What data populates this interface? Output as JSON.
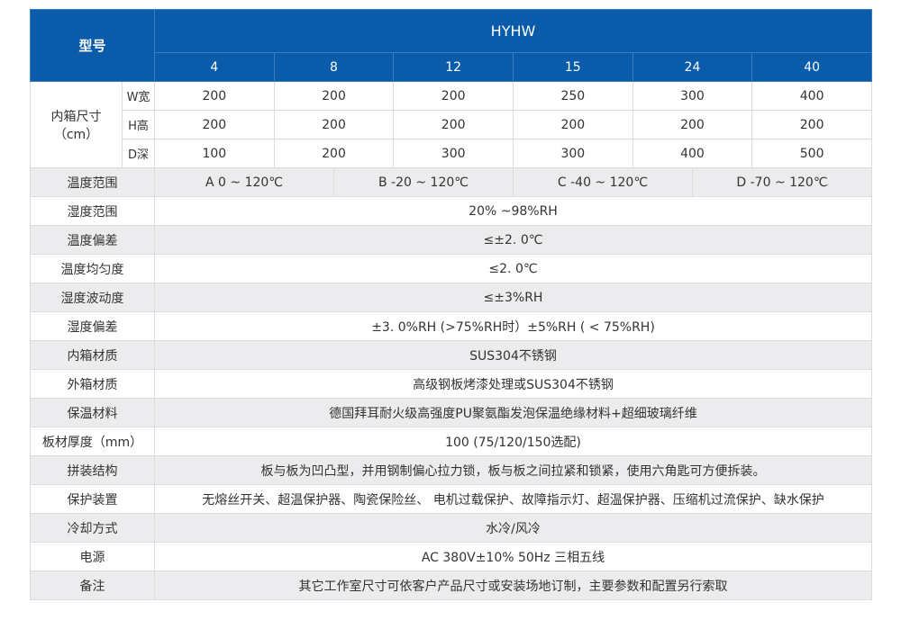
{
  "header": {
    "model_label": "型号",
    "series": "HYHW",
    "models": [
      "4",
      "8",
      "12",
      "15",
      "24",
      "40"
    ]
  },
  "inner_size": {
    "label": "内箱尺寸",
    "unit": "（cm）",
    "rows": [
      {
        "dim": "W宽",
        "values": [
          "200",
          "200",
          "200",
          "250",
          "300",
          "400"
        ]
      },
      {
        "dim": "H高",
        "values": [
          "200",
          "200",
          "200",
          "200",
          "200",
          "200"
        ]
      },
      {
        "dim": "D深",
        "values": [
          "100",
          "200",
          "300",
          "300",
          "400",
          "500"
        ]
      }
    ]
  },
  "temp_range": {
    "label": "温度范围",
    "options": [
      "A 0 ~ 120℃",
      "B -20 ~ 120℃",
      "C -40 ~ 120℃",
      "D -70 ~ 120℃"
    ]
  },
  "specs": [
    {
      "label": "湿度范围",
      "value": "20% ~98%RH"
    },
    {
      "label": "温度偏差",
      "value": "≤±2. 0℃"
    },
    {
      "label": "温度均匀度",
      "value": "≤2. 0℃"
    },
    {
      "label": "湿度波动度",
      "value": "≤±3%RH"
    },
    {
      "label": "湿度偏差",
      "value": "±3. 0%RH (>75%RH时）±5%RH ( < 75%RH)"
    },
    {
      "label": "内箱材质",
      "value": "SUS304不锈钢"
    },
    {
      "label": "外箱材质",
      "value": "高级钢板烤漆处理或SUS304不锈钢"
    },
    {
      "label": "保温材料",
      "value": "德国拜耳耐火级高强度PU聚氨酯发泡保温绝缘材料+超细玻璃纤维"
    },
    {
      "label": "板材厚度（mm）",
      "value": "100 (75/120/150选配)"
    },
    {
      "label": "拼装结构",
      "value": "板与板为凹凸型，并用钢制偏心拉力锁，板与板之间拉紧和锁紧，使用六角匙可方便拆装。"
    },
    {
      "label": "保护装置",
      "value": "无熔丝开关、超温保护器、陶瓷保险丝、 电机过载保护、故障指示灯、超温保护器、压缩机过流保护、缺水保护"
    },
    {
      "label": "冷却方式",
      "value": "水冷/风冷"
    },
    {
      "label": "电源",
      "value": "AC 380V±10% 50Hz 三相五线"
    },
    {
      "label": "备注",
      "value": "其它工作室尺寸可依客户产品尺寸或安装场地订制，主要参数和配置另行索取"
    }
  ],
  "colors": {
    "header_blue": "#0a5cab",
    "stripe_gray": "#ececee"
  }
}
